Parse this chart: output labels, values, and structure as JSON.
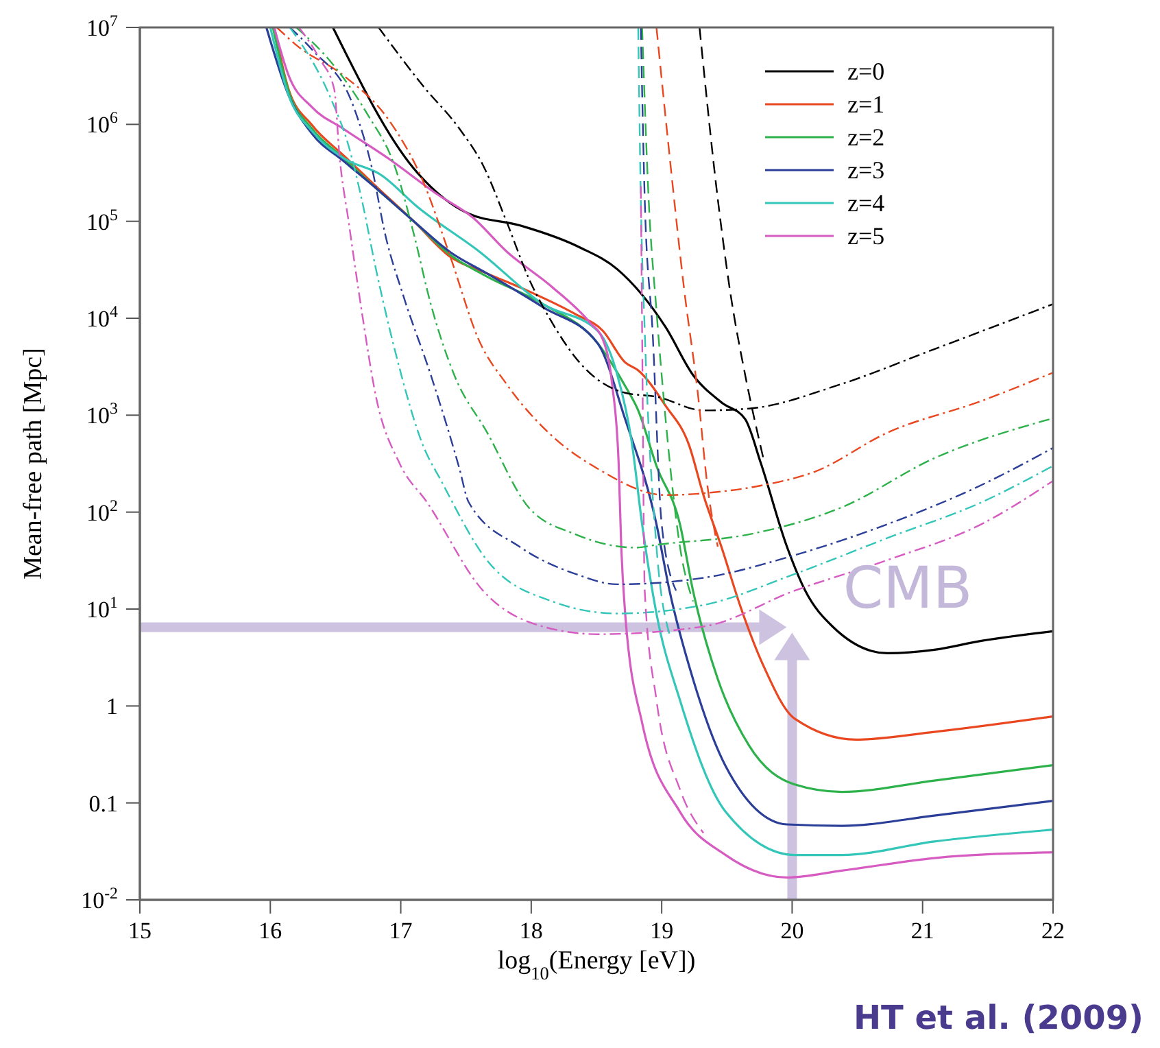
{
  "chart_data": {
    "type": "line",
    "xlabel": "log$_{10}$(Energy [eV])",
    "ylabel": "Mean-free path [Mpc]",
    "log": "y",
    "grid": false,
    "legend": "top right",
    "xlim": [
      15,
      22
    ],
    "xticks": [
      15,
      16,
      17,
      18,
      19,
      20,
      21,
      22
    ],
    "ylim": [
      0.01,
      10000000
    ],
    "yticks": [
      {
        "value": 0.01,
        "label": "10$^{-2}$"
      },
      0.1,
      1,
      {
        "value": 10,
        "label": "10$^{1}$"
      },
      {
        "value": 100,
        "label": "10$^{2}$"
      },
      {
        "value": 1000,
        "label": "10$^{3}$"
      },
      {
        "value": 10000,
        "label": "10$^{4}$"
      },
      {
        "value": 100000,
        "label": "10$^{5}$"
      },
      {
        "value": 1000000,
        "label": "10$^{6}$"
      },
      {
        "value": 10000000,
        "label": "10$^{7}$"
      }
    ],
    "annotations": [
      "CMB",
      "HT et al. (2009)"
    ],
    "series": [
      {
        "name": "z=0",
        "color": "#000000",
        "line_style": "solid",
        "x": [
          16.48,
          17.1,
          17.52,
          17.91,
          18.37,
          18.66,
          19.03,
          19.24,
          19.46,
          19.64,
          19.76,
          19.96,
          20.1,
          20.31,
          20.73,
          21.09,
          21.45,
          22
        ],
        "values": [
          10000000,
          350000,
          120000,
          91000,
          54000,
          32000,
          8100,
          2600,
          1350,
          910,
          320,
          44,
          15.5,
          6.6,
          3.5,
          3.8,
          4.7,
          5.9
        ]
      },
      {
        "name": "z=1",
        "color": "#e9471f",
        "line_style": "solid",
        "x": [
          16.03,
          16.14,
          16.32,
          16.56,
          16.81,
          17.1,
          17.38,
          17.66,
          17.98,
          18.34,
          18.55,
          18.72,
          18.82,
          19.03,
          19.21,
          19.32,
          19.46,
          19.6,
          19.78,
          20.02,
          20.49,
          21.09,
          22
        ],
        "values": [
          10000000,
          2300000,
          980000,
          480000,
          230000,
          100000,
          43000,
          29000,
          19000,
          11000,
          7400,
          3500,
          2900,
          1250,
          490,
          150,
          43,
          11,
          2.6,
          0.74,
          0.45,
          0.54,
          0.78
        ]
      },
      {
        "name": "z=2",
        "color": "#2db24b",
        "line_style": "solid",
        "x": [
          16.02,
          16.14,
          16.32,
          16.56,
          16.81,
          17.1,
          17.38,
          17.66,
          18.09,
          18.51,
          18.72,
          18.82,
          18.96,
          19.14,
          19.24,
          19.43,
          19.67,
          20.02,
          20.38,
          21.09,
          22
        ],
        "values": [
          10000000,
          2200000,
          900000,
          450000,
          220000,
          100000,
          45000,
          27000,
          14000,
          5500,
          2000,
          1120,
          300,
          75,
          15.5,
          1.9,
          0.39,
          0.155,
          0.13,
          0.17,
          0.245
        ]
      },
      {
        "name": "z=3",
        "color": "#2b3e98",
        "line_style": "solid",
        "x": [
          15.97,
          16.14,
          16.32,
          16.56,
          16.81,
          17.1,
          17.38,
          17.66,
          18.09,
          18.51,
          18.72,
          18.96,
          19.06,
          19.24,
          19.49,
          19.96,
          20.38,
          21.09,
          22
        ],
        "values": [
          10000000,
          2000000,
          800000,
          420000,
          220000,
          100000,
          48000,
          29000,
          13000,
          5500,
          910,
          75,
          15.5,
          1.9,
          0.24,
          0.06,
          0.058,
          0.074,
          0.105
        ]
      },
      {
        "name": "z=4",
        "color": "#33c6b9",
        "line_style": "solid",
        "x": [
          16.0,
          16.14,
          16.32,
          16.56,
          16.85,
          17.13,
          17.6,
          18.09,
          18.51,
          18.66,
          18.77,
          18.85,
          18.96,
          19.14,
          19.49,
          20.02,
          20.38,
          21.09,
          22
        ],
        "values": [
          10000000,
          2000000,
          850000,
          450000,
          300000,
          140000,
          49000,
          14000,
          7400,
          2600,
          535,
          75,
          9,
          1.15,
          0.081,
          0.029,
          0.029,
          0.04,
          0.053
        ]
      },
      {
        "name": "z=5",
        "color": "#d65cc2",
        "line_style": "solid",
        "x": [
          16.03,
          16.14,
          16.32,
          16.56,
          16.91,
          17.28,
          17.55,
          17.81,
          18.16,
          18.45,
          18.55,
          18.62,
          18.67,
          18.69,
          18.72,
          18.85,
          19.14,
          19.49,
          19.96,
          20.38,
          21.09,
          22
        ],
        "values": [
          10000000,
          3200000,
          1500000,
          900000,
          440000,
          190000,
          110000,
          49000,
          21000,
          9000,
          6000,
          2100,
          320,
          44,
          9,
          0.67,
          0.081,
          0.029,
          0.017,
          0.02,
          0.027,
          0.031
        ]
      },
      {
        "color": "#000000",
        "line_style": "dashdot",
        "x": [
          16.83,
          17.17,
          17.45,
          17.63,
          17.81,
          17.98,
          18.16,
          18.37,
          18.72,
          18.96,
          19.32,
          19.67,
          20.38,
          21.09,
          22
        ],
        "values": [
          10000000,
          2500000,
          900000,
          380000,
          100000,
          26000,
          9000,
          3500,
          1700,
          1550,
          1120,
          1170,
          2100,
          4800,
          14000
        ]
      },
      {
        "color": "#e9471f",
        "line_style": "dashdot",
        "x": [
          16.05,
          16.21,
          16.56,
          16.91,
          17.17,
          17.38,
          17.6,
          17.81,
          18.16,
          18.51,
          19.03,
          19.4,
          19.78,
          20.17,
          20.73,
          21.45,
          22
        ],
        "values": [
          10000000,
          6400000,
          3200000,
          1100000,
          260000,
          43000,
          5900,
          2100,
          610,
          280,
          150,
          160,
          190,
          260,
          660,
          1400,
          2750
        ]
      },
      {
        "color": "#2db24b",
        "line_style": "dashdot",
        "x": [
          16.2,
          16.49,
          16.74,
          16.96,
          17.1,
          17.23,
          17.41,
          17.66,
          17.98,
          18.34,
          18.8,
          18.96,
          19.67,
          20.38,
          21.09,
          22
        ],
        "values": [
          10000000,
          4000000,
          1300000,
          350000,
          74000,
          14000,
          2600,
          670,
          112,
          59,
          43,
          46,
          59,
          112,
          360,
          930
        ]
      },
      {
        "color": "#2b3e98",
        "line_style": "dashdot",
        "x": [
          16.15,
          16.32,
          16.64,
          16.78,
          16.88,
          17.02,
          17.23,
          17.45,
          17.52,
          17.91,
          18.34,
          18.66,
          19.32,
          20.02,
          20.73,
          21.45,
          22
        ],
        "values": [
          10000000,
          5900000,
          1500000,
          350000,
          74000,
          17000,
          2600,
          280,
          127,
          44,
          23,
          18,
          21,
          36,
          75,
          190,
          460
        ]
      },
      {
        "color": "#33c6b9",
        "line_style": "dashdot",
        "x": [
          16.15,
          16.46,
          16.6,
          16.7,
          16.81,
          16.96,
          17.17,
          17.31,
          17.66,
          18.16,
          18.66,
          19.32,
          20.02,
          20.73,
          21.45,
          22
        ],
        "values": [
          10000000,
          1900000,
          600000,
          170000,
          32000,
          4400,
          490,
          210,
          32,
          12,
          9,
          11,
          23,
          54,
          126,
          300
        ]
      },
      {
        "color": "#d65cc2",
        "line_style": "dashdot",
        "x": [
          16.22,
          16.38,
          16.49,
          16.53,
          16.6,
          16.7,
          16.81,
          16.99,
          17.2,
          17.63,
          18.09,
          18.51,
          19.32,
          20.02,
          20.73,
          21.45,
          22
        ],
        "values": [
          10000000,
          4700000,
          2300000,
          480000,
          100000,
          12000,
          1550,
          320,
          127,
          15.5,
          6.6,
          5.5,
          6.6,
          15.5,
          32,
          75,
          210
        ]
      },
      {
        "color": "#000000",
        "line_style": "dashed",
        "x": [
          19.29,
          19.43,
          19.53,
          19.64,
          19.78
        ],
        "values": [
          10000000,
          170000,
          17000,
          2600,
          355
        ]
      },
      {
        "color": "#e9471f",
        "line_style": "dashed",
        "x": [
          18.96,
          19.06,
          19.17,
          19.28,
          19.35,
          19.43
        ],
        "values": [
          10000000,
          480000,
          21000,
          1550,
          190,
          44
        ]
      },
      {
        "color": "#2db24b",
        "line_style": "dashed",
        "x": [
          18.85,
          18.9,
          18.96,
          19.03,
          19.14,
          19.24
        ],
        "values": [
          10000000,
          170000,
          12000,
          910,
          44,
          12
        ]
      },
      {
        "color": "#2b3e98",
        "line_style": "dashed",
        "x": [
          18.84,
          18.87,
          18.93,
          19.0,
          19.11
        ],
        "values": [
          10000000,
          170000,
          7400,
          75,
          15.5
        ]
      },
      {
        "color": "#33c6b9",
        "line_style": "dashed",
        "x": [
          18.82,
          18.84,
          18.87,
          18.96,
          19.06
        ],
        "values": [
          10000000,
          170000,
          7400,
          44,
          5.5
        ]
      },
      {
        "color": "#d65cc2",
        "line_style": "dashed",
        "x": [
          18.84,
          18.85,
          18.87,
          18.96,
          19.14,
          19.32
        ],
        "values": [
          230000,
          7400,
          15.5,
          1.15,
          0.138,
          0.049
        ]
      }
    ]
  }
}
